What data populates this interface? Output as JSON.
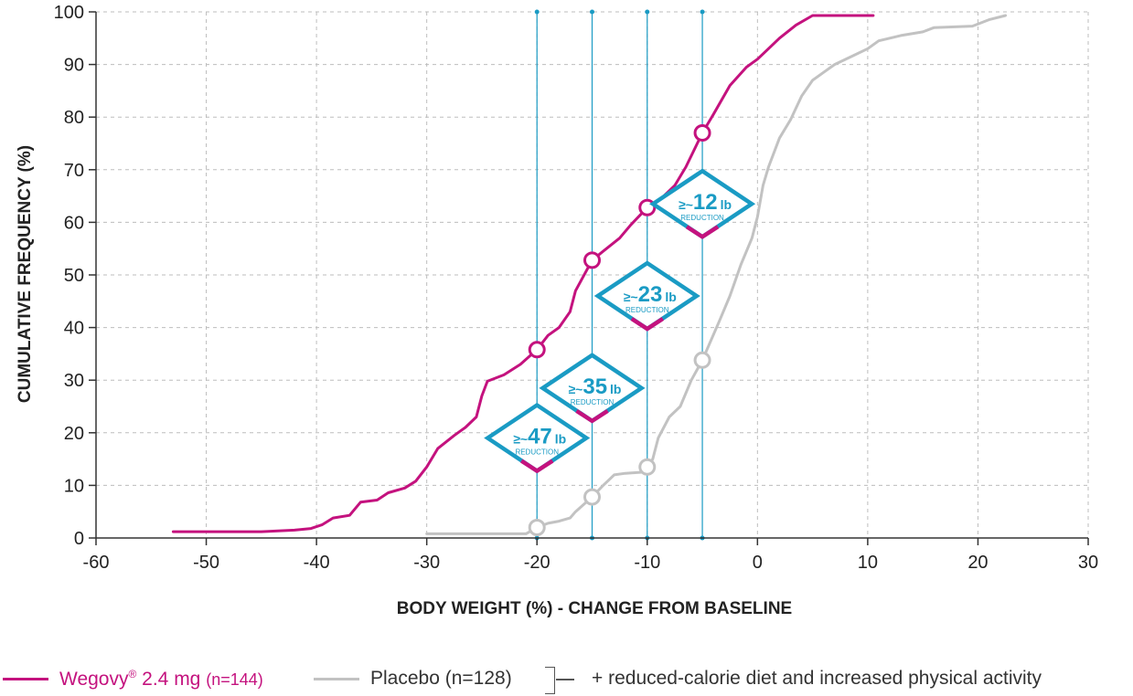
{
  "chart_data": {
    "type": "line",
    "title": "",
    "xlabel": "BODY WEIGHT (%) - CHANGE FROM BASELINE",
    "ylabel": "CUMULATIVE FREQUENCY (%)",
    "xlim": [
      -60,
      30
    ],
    "ylim": [
      0,
      100
    ],
    "xticks": [
      "-60",
      "-50",
      "-40",
      "-30",
      "-20",
      "-10",
      "0",
      "10",
      "20",
      "30"
    ],
    "yticks": [
      "0",
      "10",
      "20",
      "30",
      "40",
      "50",
      "60",
      "70",
      "80",
      "90",
      "100"
    ],
    "grid": true,
    "colors": {
      "wegovy": "#c4127e",
      "placebo": "#c2c2c2",
      "reference": "#1a9bc4",
      "badge_text": "#1a9bc4"
    },
    "reference_lines_x": [
      -20,
      -15,
      -10,
      -5
    ],
    "series": [
      {
        "name": "Wegovy® 2.4 mg (n=144)",
        "color": "#c4127e",
        "points": [
          [
            -53,
            1.2
          ],
          [
            -45,
            1.2
          ],
          [
            -42,
            1.5
          ],
          [
            -40.5,
            1.8
          ],
          [
            -39.5,
            2.5
          ],
          [
            -38.5,
            3.8
          ],
          [
            -37,
            4.3
          ],
          [
            -36,
            6.8
          ],
          [
            -34.5,
            7.2
          ],
          [
            -33.5,
            8.6
          ],
          [
            -32,
            9.5
          ],
          [
            -31,
            10.8
          ],
          [
            -30,
            13.5
          ],
          [
            -29,
            17
          ],
          [
            -27.5,
            19.5
          ],
          [
            -26.5,
            21
          ],
          [
            -25.5,
            23
          ],
          [
            -25,
            27
          ],
          [
            -24.5,
            29.8
          ],
          [
            -23,
            31
          ],
          [
            -21.5,
            33
          ],
          [
            -20,
            35.8
          ],
          [
            -19,
            38.5
          ],
          [
            -18,
            40
          ],
          [
            -17,
            43
          ],
          [
            -16.5,
            47
          ],
          [
            -15,
            52.8
          ],
          [
            -14,
            54.5
          ],
          [
            -12.5,
            57
          ],
          [
            -11.5,
            59.5
          ],
          [
            -10,
            62.8
          ],
          [
            -9,
            64
          ],
          [
            -7.5,
            67
          ],
          [
            -6.5,
            70.5
          ],
          [
            -5,
            77
          ],
          [
            -4,
            80.5
          ],
          [
            -2.5,
            86
          ],
          [
            -1,
            89.5
          ],
          [
            0,
            91
          ],
          [
            1,
            93
          ],
          [
            2,
            95
          ],
          [
            3.5,
            97.5
          ],
          [
            5,
            99.3
          ],
          [
            10.5,
            99.3
          ]
        ],
        "circles": [
          [
            -20,
            35.8
          ],
          [
            -15,
            52.8
          ],
          [
            -10,
            62.8
          ],
          [
            -5,
            77
          ]
        ]
      },
      {
        "name": "Placebo (n=128)",
        "color": "#c2c2c2",
        "points": [
          [
            -30,
            0.8
          ],
          [
            -21,
            0.8
          ],
          [
            -20,
            2
          ],
          [
            -19,
            2.8
          ],
          [
            -18,
            3.2
          ],
          [
            -17,
            3.8
          ],
          [
            -16.5,
            5
          ],
          [
            -15,
            7.8
          ],
          [
            -14,
            10
          ],
          [
            -13,
            12
          ],
          [
            -12,
            12.3
          ],
          [
            -10.5,
            12.5
          ],
          [
            -10,
            13.5
          ],
          [
            -9.5,
            15
          ],
          [
            -9,
            19
          ],
          [
            -8,
            23
          ],
          [
            -7,
            25
          ],
          [
            -6,
            30
          ],
          [
            -5,
            33.8
          ],
          [
            -3.5,
            41
          ],
          [
            -2.5,
            46
          ],
          [
            -1.5,
            52
          ],
          [
            -0.5,
            57
          ],
          [
            0,
            61
          ],
          [
            0.5,
            67
          ],
          [
            1,
            70.5
          ],
          [
            2,
            76
          ],
          [
            3,
            79.5
          ],
          [
            4,
            84
          ],
          [
            5,
            87
          ],
          [
            6,
            88.5
          ],
          [
            7,
            90
          ],
          [
            8.5,
            91.5
          ],
          [
            10,
            93
          ],
          [
            11,
            94.5
          ],
          [
            13,
            95.5
          ],
          [
            15,
            96.2
          ],
          [
            16,
            97
          ],
          [
            19.5,
            97.3
          ],
          [
            21,
            98.5
          ],
          [
            22.5,
            99.3
          ]
        ],
        "circles": [
          [
            -20,
            2
          ],
          [
            -15,
            7.8
          ],
          [
            -10,
            13.5
          ],
          [
            -5,
            33.8
          ]
        ]
      }
    ],
    "badges": [
      {
        "prefix": "≥~",
        "value": "47",
        "unit": "lb",
        "sub": "REDUCTION",
        "x": -20,
        "y": 19
      },
      {
        "prefix": "≥~",
        "value": "35",
        "unit": "lb",
        "sub": "REDUCTION",
        "x": -15,
        "y": 28.5
      },
      {
        "prefix": "≥~",
        "value": "23",
        "unit": "lb",
        "sub": "REDUCTION",
        "x": -10,
        "y": 46
      },
      {
        "prefix": "≥~",
        "value": "12",
        "unit": "lb",
        "sub": "REDUCTION",
        "x": -5,
        "y": 63.5
      }
    ]
  },
  "legend": {
    "wegovy_name": "Wegovy",
    "wegovy_reg": "®",
    "wegovy_dose": " 2.4 mg",
    "wegovy_n": "(n=144)",
    "placebo": "Placebo (n=128)",
    "note": "+ reduced-calorie diet and increased physical activity"
  }
}
